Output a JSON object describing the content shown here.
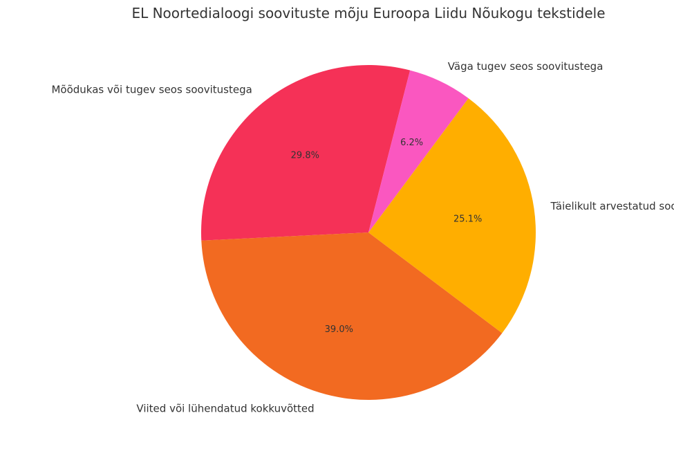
{
  "chart_data": {
    "type": "pie",
    "title": "EL Noortedialoogi soovituste mõju Euroopa Liidu Nõukogu tekstidele",
    "slices": [
      {
        "label": "Mõõdukas või tugev seos soovitustega",
        "value": 29.8,
        "pct_label": "29.8%",
        "color": "#F53157"
      },
      {
        "label": "Viited või lühendatud kokkuvõtted",
        "value": 39.0,
        "pct_label": "39.0%",
        "color": "#F26A21"
      },
      {
        "label": "Täielikult arvestatud soovitused",
        "value": 25.1,
        "pct_label": "25.1%",
        "color": "#FFAE00"
      },
      {
        "label": "Väga tugev seos soovitustega",
        "value": 6.2,
        "pct_label": "6.2%",
        "color": "#FA57C0"
      }
    ]
  }
}
